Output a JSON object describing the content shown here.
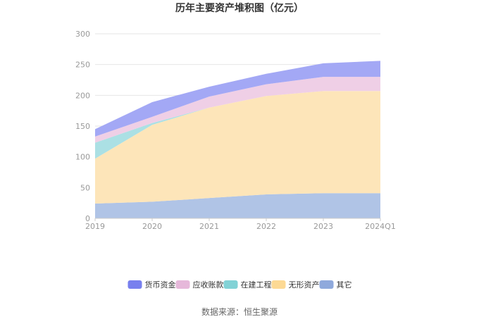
{
  "chart_data": {
    "type": "area",
    "stacked": true,
    "title": "历年主要资产堆积图（亿元）",
    "categories": [
      "2019",
      "2020",
      "2021",
      "2022",
      "2023",
      "2024Q1"
    ],
    "ylim": [
      0,
      300
    ],
    "yticks": [
      0,
      50,
      100,
      150,
      200,
      250,
      300
    ],
    "grid": true,
    "legend_position": "bottom",
    "series": [
      {
        "name": "其它",
        "color": "#b0c4e6",
        "legend_color": "#8fa9dc",
        "values": [
          24,
          27,
          33,
          39,
          41,
          41
        ]
      },
      {
        "name": "无形资产",
        "color": "#fde5b9",
        "legend_color": "#fcd994",
        "values": [
          73,
          125,
          147,
          160,
          166,
          166
        ]
      },
      {
        "name": "在建工程",
        "color": "#abe0e4",
        "legend_color": "#82d2d6",
        "values": [
          26,
          3,
          0,
          0,
          0,
          0
        ]
      },
      {
        "name": "应收账款",
        "color": "#efcfe6",
        "legend_color": "#e6b8da",
        "values": [
          10,
          10,
          18,
          19,
          23,
          23
        ]
      },
      {
        "name": "货币资金",
        "color": "#a3a8f5",
        "legend_color": "#7880ee",
        "values": [
          12,
          24,
          16,
          17,
          22,
          26
        ]
      }
    ],
    "legend_order": [
      "货币资金",
      "应收账款",
      "在建工程",
      "无形资产",
      "其它"
    ]
  },
  "footer": {
    "source": "数据来源：恒生聚源"
  }
}
